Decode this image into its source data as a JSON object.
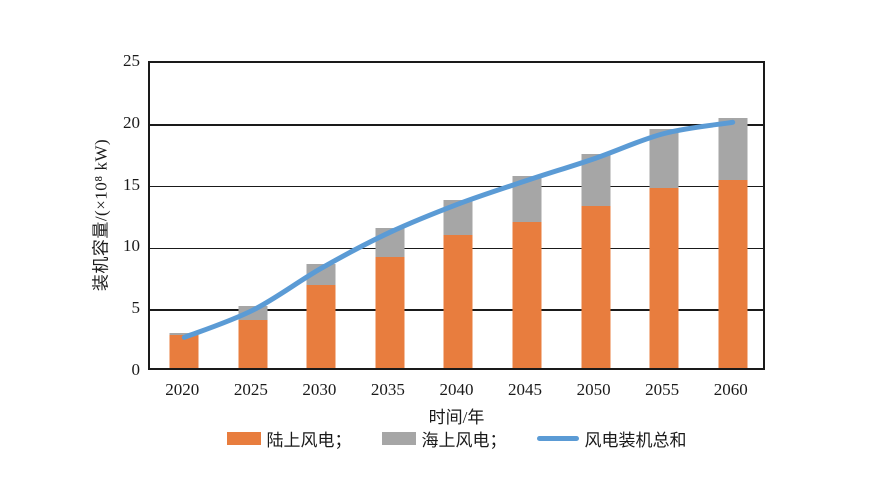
{
  "chart_data": {
    "type": "bar",
    "stacked": true,
    "categories": [
      "2020",
      "2025",
      "2030",
      "2035",
      "2040",
      "2045",
      "2050",
      "2055",
      "2060"
    ],
    "series": [
      {
        "name": "陆上风电",
        "type": "bar",
        "color": "#E87D3E",
        "values": [
          2.7,
          3.9,
          6.7,
          9.0,
          10.8,
          11.8,
          13.1,
          14.6,
          15.2
        ]
      },
      {
        "name": "海上风电",
        "type": "bar",
        "color": "#A6A6A6",
        "values": [
          0.1,
          1.1,
          1.7,
          2.3,
          2.8,
          3.7,
          4.2,
          4.7,
          5.0
        ]
      },
      {
        "name": "风电装机总和",
        "type": "line",
        "color": "#5B9BD5",
        "values": [
          2.8,
          5.0,
          8.4,
          11.3,
          13.6,
          15.5,
          17.3,
          19.3,
          20.2
        ]
      }
    ],
    "xlabel": "时间/年",
    "ylabel": "装机容量/(×10⁸ kW)",
    "ylim": [
      0,
      25
    ],
    "yticks": [
      0,
      5,
      10,
      15,
      20,
      25
    ],
    "grid": true,
    "grid_values": [
      5,
      10,
      15,
      20
    ],
    "legend_position": "bottom",
    "title": ""
  },
  "axes": {
    "x_title": "时间/年",
    "y_title": "装机容量/(×10⁸ kW)"
  },
  "legend": {
    "items": [
      {
        "label": "陆上风电；",
        "swatch": "bar",
        "color": "#E87D3E"
      },
      {
        "label": "海上风电；",
        "swatch": "bar",
        "color": "#A6A6A6"
      },
      {
        "label": "风电装机总和",
        "swatch": "line",
        "color": "#5B9BD5"
      }
    ]
  },
  "colors": {
    "onshore": "#E87D3E",
    "offshore": "#A6A6A6",
    "total_line": "#5B9BD5",
    "axis": "#1a1a1a",
    "background": "#ffffff"
  }
}
